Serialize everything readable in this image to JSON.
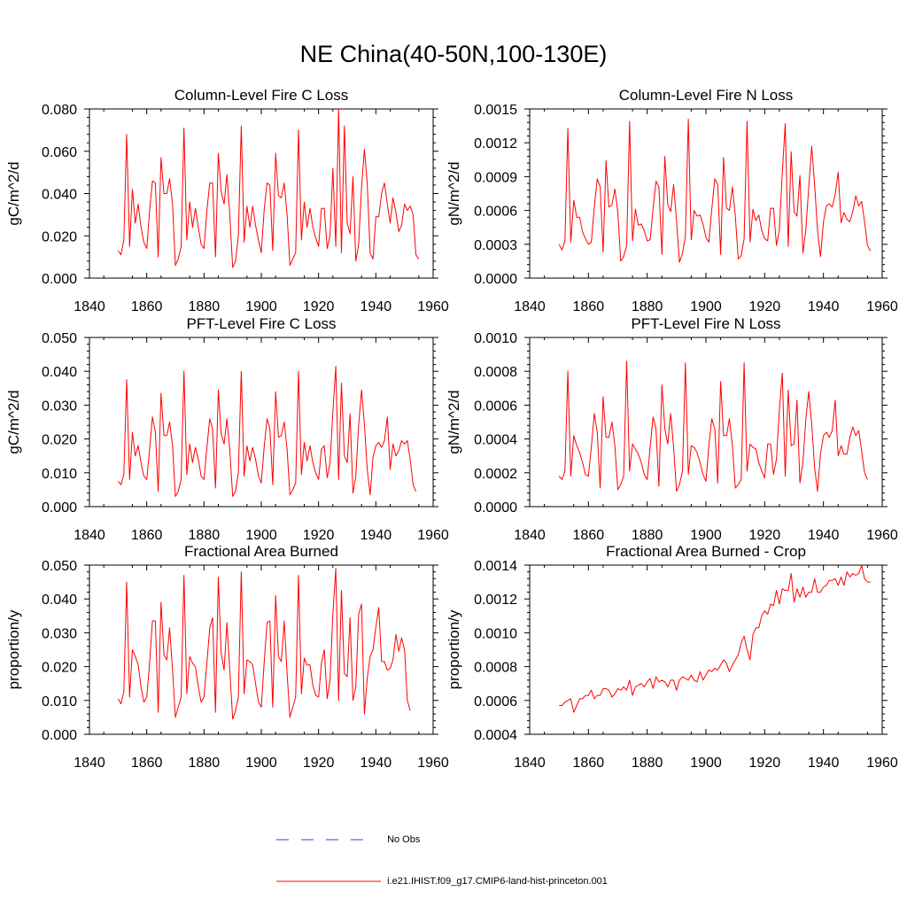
{
  "figure": {
    "title": "NE China(40-50N,100-130E)"
  },
  "legend": [
    {
      "label": "No Obs",
      "color": "#3344cc",
      "style": "dashed"
    },
    {
      "label": "i.e21.IHIST.f09_g17.CMIP6-land-hist-princeton.001",
      "color": "#ff0000",
      "style": "solid"
    }
  ],
  "colors": {
    "series": "#ff0000",
    "obs": "#3344cc"
  },
  "chart_data": [
    {
      "type": "line",
      "title": "Column-Level Fire C Loss",
      "ylabel": "gC/m^2/d",
      "xlim": [
        1840,
        1960
      ],
      "ylim": [
        0,
        0.08
      ],
      "yticks": [
        "0.000",
        "0.020",
        "0.040",
        "0.060",
        "0.080"
      ],
      "xticks": [
        "1840",
        "1860",
        "1880",
        "1900",
        "1920",
        "1940",
        "1960"
      ],
      "x_start": 1850,
      "series": [
        {
          "values": [
            0.013,
            0.011,
            0.018,
            0.068,
            0.015,
            0.042,
            0.026,
            0.035,
            0.024,
            0.017,
            0.014,
            0.032,
            0.046,
            0.045,
            0.01,
            0.057,
            0.04,
            0.04,
            0.047,
            0.035,
            0.006,
            0.009,
            0.015,
            0.071,
            0.018,
            0.036,
            0.024,
            0.033,
            0.024,
            0.016,
            0.014,
            0.032,
            0.045,
            0.045,
            0.01,
            0.059,
            0.041,
            0.035,
            0.049,
            0.03,
            0.005,
            0.008,
            0.02,
            0.072,
            0.017,
            0.034,
            0.024,
            0.034,
            0.025,
            0.018,
            0.012,
            0.032,
            0.045,
            0.044,
            0.013,
            0.059,
            0.039,
            0.038,
            0.045,
            0.03,
            0.006,
            0.009,
            0.012,
            0.07,
            0.018,
            0.036,
            0.024,
            0.033,
            0.024,
            0.019,
            0.015,
            0.033,
            0.033,
            0.014,
            0.02,
            0.052,
            0.015,
            0.08,
            0.012,
            0.072,
            0.026,
            0.021,
            0.048,
            0.008,
            0.016,
            0.043,
            0.061,
            0.045,
            0.012,
            0.009,
            0.029,
            0.029,
            0.04,
            0.045,
            0.035,
            0.026,
            0.038,
            0.031,
            0.022,
            0.025,
            0.035,
            0.032,
            0.034,
            0.03,
            0.011,
            0.009
          ]
        }
      ]
    },
    {
      "type": "line",
      "title": "Column-Level Fire N Loss",
      "ylabel": "gN/m^2/d",
      "xlim": [
        1840,
        1960
      ],
      "ylim": [
        0,
        0.0015
      ],
      "yticks": [
        "0.0000",
        "0.0003",
        "0.0006",
        "0.0009",
        "0.0012",
        "0.0015"
      ],
      "xticks": [
        "1840",
        "1860",
        "1880",
        "1900",
        "1920",
        "1940",
        "1960"
      ],
      "x_start": 1850,
      "series": [
        {
          "values": [
            0.0003,
            0.00025,
            0.00033,
            0.00133,
            0.00032,
            0.00069,
            0.00054,
            0.00054,
            0.00041,
            0.00035,
            0.0003,
            0.00032,
            0.00063,
            0.00088,
            0.00081,
            0.00023,
            0.00104,
            0.00063,
            0.00065,
            0.00079,
            0.00059,
            0.00015,
            0.00019,
            0.00029,
            0.00139,
            0.00033,
            0.00061,
            0.00047,
            0.00048,
            0.00042,
            0.00033,
            0.00034,
            0.00061,
            0.00086,
            0.00081,
            0.00021,
            0.00108,
            0.00065,
            0.00059,
            0.00083,
            0.00051,
            0.00014,
            0.00022,
            0.00037,
            0.00141,
            0.00034,
            0.0006,
            0.00055,
            0.00056,
            0.00048,
            0.00036,
            0.00032,
            0.00061,
            0.00088,
            0.00083,
            0.00021,
            0.00107,
            0.00062,
            0.0006,
            0.00081,
            0.00055,
            0.00017,
            0.0002,
            0.00035,
            0.00139,
            0.00032,
            0.00061,
            0.00051,
            0.00056,
            0.00042,
            0.00035,
            0.00033,
            0.00062,
            0.00062,
            0.00029,
            0.00043,
            0.00093,
            0.00137,
            0.00028,
            0.00112,
            0.00059,
            0.00055,
            0.00091,
            0.00022,
            0.00043,
            0.00081,
            0.00117,
            0.00083,
            0.00042,
            0.00019,
            0.0005,
            0.00064,
            0.00066,
            0.00063,
            0.00074,
            0.00094,
            0.00049,
            0.00058,
            0.00052,
            0.0005,
            0.00059,
            0.00073,
            0.00064,
            0.00068,
            0.0005,
            0.00029,
            0.00024
          ]
        }
      ]
    },
    {
      "type": "line",
      "title": "PFT-Level Fire C Loss",
      "ylabel": "gC/m^2/d",
      "xlim": [
        1840,
        1960
      ],
      "ylim": [
        0,
        0.05
      ],
      "yticks": [
        "0.000",
        "0.010",
        "0.020",
        "0.030",
        "0.040",
        "0.050"
      ],
      "xticks": [
        "1840",
        "1860",
        "1880",
        "1900",
        "1920",
        "1940",
        "1960"
      ],
      "x_start": 1850,
      "series": [
        {
          "values": [
            0.0075,
            0.0065,
            0.0095,
            0.0375,
            0.008,
            0.022,
            0.015,
            0.018,
            0.013,
            0.009,
            0.008,
            0.017,
            0.0265,
            0.022,
            0.0045,
            0.0335,
            0.021,
            0.021,
            0.025,
            0.018,
            0.003,
            0.0045,
            0.008,
            0.04,
            0.0095,
            0.0185,
            0.013,
            0.0175,
            0.014,
            0.009,
            0.008,
            0.0175,
            0.026,
            0.023,
            0.0055,
            0.0345,
            0.0215,
            0.0185,
            0.026,
            0.017,
            0.003,
            0.0045,
            0.01,
            0.04,
            0.009,
            0.018,
            0.0135,
            0.0175,
            0.014,
            0.009,
            0.007,
            0.0175,
            0.026,
            0.023,
            0.0065,
            0.034,
            0.0205,
            0.021,
            0.025,
            0.017,
            0.0035,
            0.005,
            0.007,
            0.04,
            0.0095,
            0.019,
            0.0135,
            0.018,
            0.013,
            0.01,
            0.008,
            0.017,
            0.018,
            0.0085,
            0.013,
            0.028,
            0.0415,
            0.008,
            0.0365,
            0.015,
            0.013,
            0.0275,
            0.004,
            0.009,
            0.024,
            0.0345,
            0.0245,
            0.011,
            0.0035,
            0.0145,
            0.018,
            0.019,
            0.0175,
            0.0195,
            0.0265,
            0.011,
            0.0185,
            0.015,
            0.0165,
            0.0195,
            0.0185,
            0.0195,
            0.014,
            0.0065,
            0.0045
          ]
        }
      ]
    },
    {
      "type": "line",
      "title": "PFT-Level Fire N Loss",
      "ylabel": "gN/m^2/d",
      "xlim": [
        1840,
        1960
      ],
      "ylim": [
        0,
        0.001
      ],
      "yticks": [
        "0.0000",
        "0.0002",
        "0.0004",
        "0.0006",
        "0.0008",
        "0.0010"
      ],
      "xticks": [
        "1840",
        "1860",
        "1880",
        "1900",
        "1920",
        "1940",
        "1960"
      ],
      "x_start": 1850,
      "series": [
        {
          "values": [
            0.00018,
            0.00016,
            0.00021,
            0.0008,
            0.00018,
            0.00042,
            0.00036,
            0.00032,
            0.00026,
            0.00019,
            0.00018,
            0.00035,
            0.00055,
            0.00044,
            0.00011,
            0.00065,
            0.00041,
            0.00041,
            0.0005,
            0.00036,
            0.0001,
            0.00013,
            0.00018,
            0.00086,
            0.00021,
            0.00037,
            0.00034,
            0.00031,
            0.00026,
            0.00019,
            0.00016,
            0.00035,
            0.00053,
            0.00046,
            0.00012,
            0.00072,
            0.00046,
            0.00037,
            0.00055,
            0.00035,
            9e-05,
            0.00013,
            0.00021,
            0.00085,
            0.00019,
            0.00036,
            0.00035,
            0.00032,
            0.00026,
            0.00019,
            0.00015,
            0.00036,
            0.00052,
            0.00046,
            0.00014,
            0.00074,
            0.00042,
            0.00042,
            0.00052,
            0.00036,
            0.00011,
            0.00013,
            0.00016,
            0.00085,
            0.00021,
            0.00037,
            0.00035,
            0.00034,
            0.00026,
            0.00021,
            0.00017,
            0.00037,
            0.00037,
            0.00019,
            0.00028,
            0.00057,
            0.00079,
            0.00018,
            0.00069,
            0.00036,
            0.00037,
            0.00063,
            0.00014,
            0.00026,
            0.00052,
            0.00068,
            0.00049,
            0.00023,
            9e-05,
            0.00031,
            0.00042,
            0.00044,
            0.00041,
            0.00045,
            0.00063,
            0.0003,
            0.00036,
            0.00031,
            0.00031,
            0.00041,
            0.00047,
            0.00042,
            0.00045,
            0.00033,
            0.0002,
            0.00016
          ]
        }
      ]
    },
    {
      "type": "line",
      "title": "Fractional Area Burned",
      "ylabel": "proportion/y",
      "xlim": [
        1840,
        1960
      ],
      "ylim": [
        0,
        0.05
      ],
      "yticks": [
        "0.000",
        "0.010",
        "0.020",
        "0.030",
        "0.040",
        "0.050"
      ],
      "xticks": [
        "1840",
        "1860",
        "1880",
        "1900",
        "1920",
        "1940",
        "1960"
      ],
      "x_start": 1850,
      "series": [
        {
          "values": [
            0.0105,
            0.009,
            0.0125,
            0.045,
            0.011,
            0.025,
            0.023,
            0.0205,
            0.014,
            0.0095,
            0.011,
            0.021,
            0.0335,
            0.0335,
            0.0065,
            0.039,
            0.0235,
            0.022,
            0.0315,
            0.019,
            0.005,
            0.008,
            0.011,
            0.047,
            0.012,
            0.023,
            0.021,
            0.02,
            0.014,
            0.0095,
            0.011,
            0.021,
            0.0315,
            0.0345,
            0.0065,
            0.0465,
            0.024,
            0.019,
            0.033,
            0.019,
            0.0045,
            0.007,
            0.011,
            0.048,
            0.012,
            0.022,
            0.0215,
            0.0205,
            0.015,
            0.0095,
            0.008,
            0.021,
            0.033,
            0.0335,
            0.008,
            0.041,
            0.023,
            0.0215,
            0.0335,
            0.018,
            0.005,
            0.008,
            0.011,
            0.047,
            0.012,
            0.0225,
            0.0205,
            0.0205,
            0.0145,
            0.0115,
            0.011,
            0.021,
            0.025,
            0.0105,
            0.016,
            0.0355,
            0.049,
            0.01,
            0.0425,
            0.018,
            0.017,
            0.0345,
            0.01,
            0.014,
            0.0355,
            0.0385,
            0.006,
            0.0165,
            0.023,
            0.025,
            0.0315,
            0.0375,
            0.0215,
            0.0215,
            0.019,
            0.0195,
            0.022,
            0.0295,
            0.0245,
            0.0285,
            0.025,
            0.01,
            0.007
          ]
        }
      ]
    },
    {
      "type": "line",
      "title": "Fractional Area Burned - Crop",
      "ylabel": "proportion/y",
      "xlim": [
        1840,
        1960
      ],
      "ylim": [
        0.0004,
        0.0014
      ],
      "yticks": [
        "0.0004",
        "0.0006",
        "0.0008",
        "0.0010",
        "0.0012",
        "0.0014"
      ],
      "xticks": [
        "1840",
        "1860",
        "1880",
        "1900",
        "1920",
        "1940",
        "1960"
      ],
      "x_start": 1850,
      "series": [
        {
          "values": [
            0.00057,
            0.00057,
            0.00059,
            0.0006,
            0.00061,
            0.00053,
            0.00057,
            0.00061,
            0.00061,
            0.00063,
            0.00063,
            0.00066,
            0.00061,
            0.00063,
            0.00063,
            0.00067,
            0.00067,
            0.00066,
            0.00062,
            0.00064,
            0.00067,
            0.00066,
            0.00068,
            0.00066,
            0.00072,
            0.00063,
            0.00068,
            0.00069,
            0.0007,
            0.00068,
            0.00071,
            0.00073,
            0.00067,
            0.00074,
            0.00071,
            0.00072,
            0.00071,
            0.00068,
            0.00072,
            0.00072,
            0.00066,
            0.00072,
            0.00074,
            0.00073,
            0.00072,
            0.00075,
            0.00072,
            0.00071,
            0.00077,
            0.00072,
            0.00075,
            0.00078,
            0.00077,
            0.00079,
            0.00078,
            0.00081,
            0.00084,
            0.00082,
            0.00077,
            0.00081,
            0.00084,
            0.00087,
            0.00094,
            0.00098,
            0.0009,
            0.00084,
            0.00099,
            0.00103,
            0.00103,
            0.0011,
            0.00113,
            0.00111,
            0.00117,
            0.00116,
            0.00125,
            0.00117,
            0.00126,
            0.00125,
            0.00125,
            0.00135,
            0.00118,
            0.00126,
            0.00121,
            0.00127,
            0.00121,
            0.00124,
            0.00124,
            0.00132,
            0.00124,
            0.00124,
            0.00127,
            0.00128,
            0.00131,
            0.00131,
            0.00132,
            0.00128,
            0.00133,
            0.00128,
            0.00136,
            0.00133,
            0.00135,
            0.00134,
            0.00135,
            0.0014,
            0.00132,
            0.0013,
            0.0013
          ]
        }
      ]
    }
  ]
}
